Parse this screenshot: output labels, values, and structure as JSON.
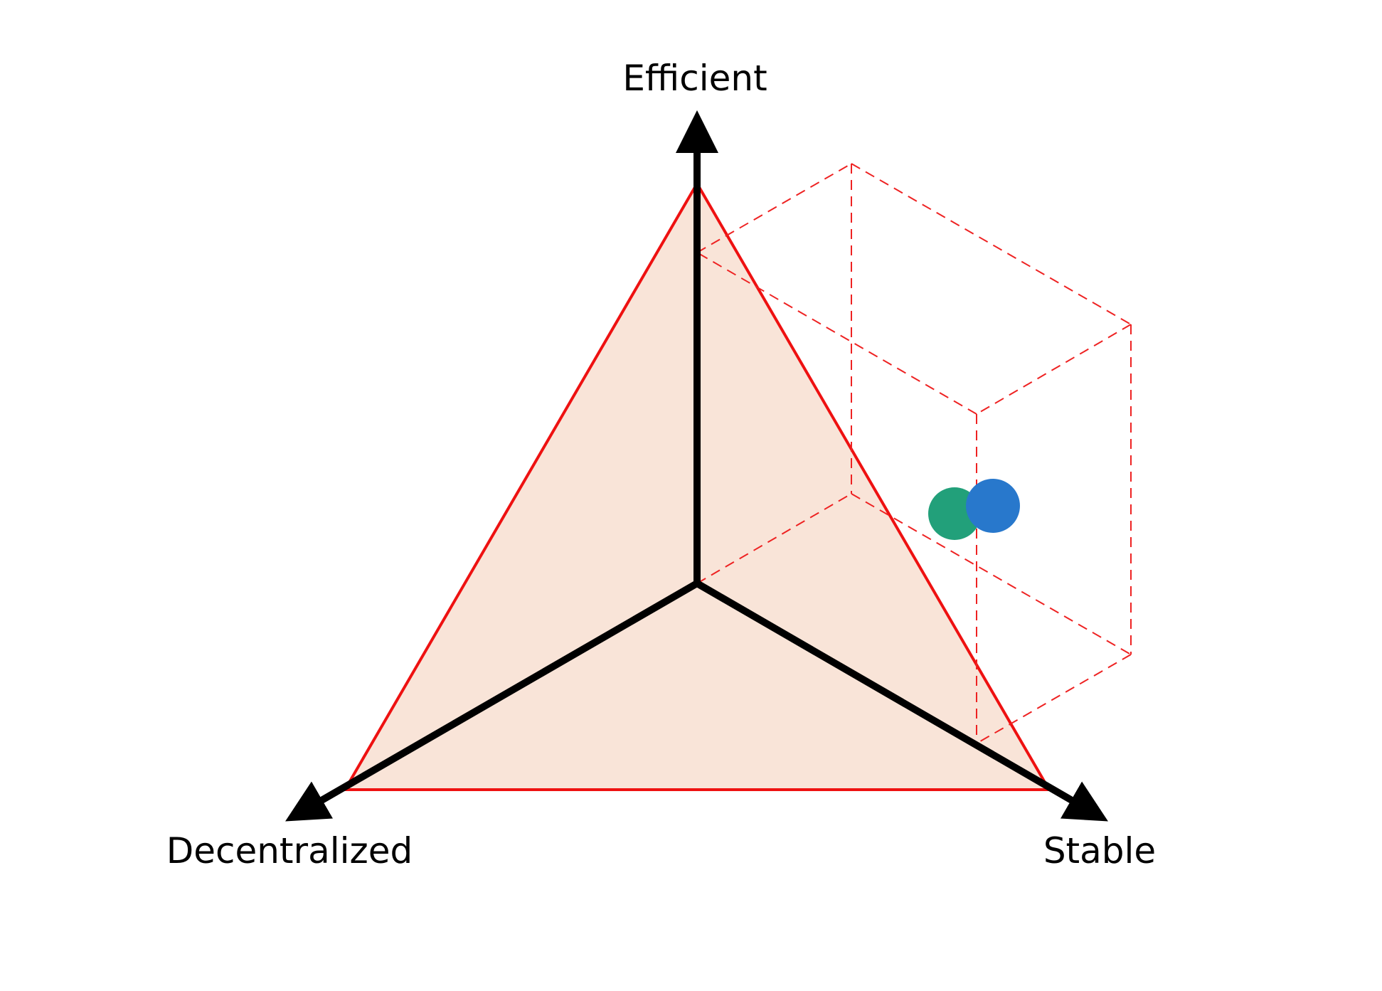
{
  "diagram": {
    "axes": {
      "efficient": "Efficient",
      "decentralized": "Decentralized",
      "stable": "Stable"
    },
    "colors": {
      "triangle_fill": "#f9e4d8",
      "triangle_stroke": "#ee1111",
      "cube_stroke": "#ee2222",
      "axis": "#000000",
      "point_green": "#22a07a",
      "point_blue": "#2878cc"
    },
    "points": [
      {
        "name": "green-point",
        "color_key": "point_green"
      },
      {
        "name": "blue-point",
        "color_key": "point_blue"
      }
    ]
  }
}
